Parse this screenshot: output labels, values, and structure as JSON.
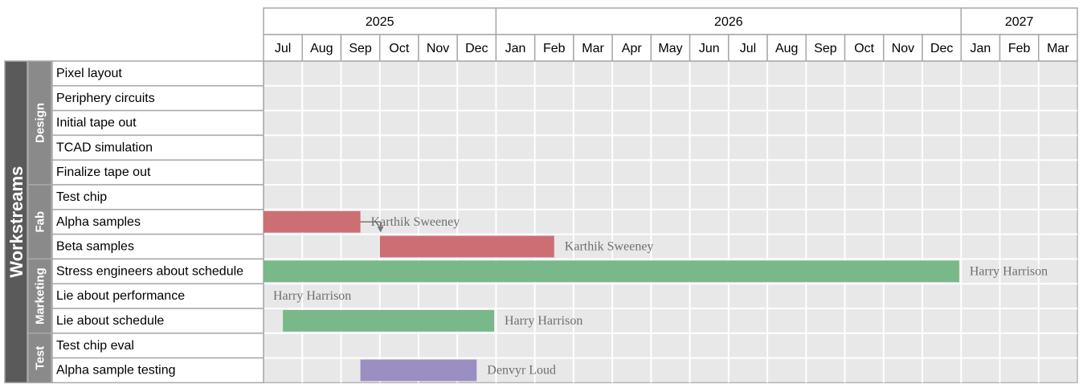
{
  "chart_data": {
    "type": "gantt",
    "title": "Workstreams",
    "years": [
      {
        "label": "2025",
        "start_month": 0,
        "months": 6
      },
      {
        "label": "2026",
        "start_month": 6,
        "months": 12
      },
      {
        "label": "2027",
        "start_month": 18,
        "months": 3
      }
    ],
    "months": [
      "Jul",
      "Aug",
      "Sep",
      "Oct",
      "Nov",
      "Dec",
      "Jan",
      "Feb",
      "Mar",
      "Apr",
      "May",
      "Jun",
      "Jul",
      "Aug",
      "Sep",
      "Oct",
      "Nov",
      "Dec",
      "Jan",
      "Feb",
      "Mar"
    ],
    "groups": [
      {
        "label": "Design",
        "first_task": 0,
        "count": 5
      },
      {
        "label": "Fab",
        "first_task": 5,
        "count": 3
      },
      {
        "label": "Marketing",
        "first_task": 8,
        "count": 3
      },
      {
        "label": "Test",
        "first_task": 11,
        "count": 2
      }
    ],
    "tasks": [
      {
        "name": "Pixel layout"
      },
      {
        "name": "Periphery circuits"
      },
      {
        "name": "Initial tape out"
      },
      {
        "name": "TCAD simulation"
      },
      {
        "name": "Finalize tape out"
      },
      {
        "name": "Test chip"
      },
      {
        "name": "Alpha samples",
        "start": 0,
        "end": 2.5,
        "owner": "Karthik Sweeney",
        "color": "#cd6e74"
      },
      {
        "name": "Beta samples",
        "start": 3,
        "end": 7.5,
        "owner": "Karthik Sweeney",
        "color": "#cd6e74"
      },
      {
        "name": "Stress engineers about schedule",
        "start": 0,
        "end": 17.95,
        "owner": "Harry Harrison",
        "color": "#79b888"
      },
      {
        "name": "Lie about performance",
        "owner": "Harry Harrison"
      },
      {
        "name": "Lie about schedule",
        "start": 0.5,
        "end": 5.95,
        "owner": "Harry Harrison",
        "color": "#79b888"
      },
      {
        "name": "Test chip eval"
      },
      {
        "name": "Alpha sample testing",
        "start": 2.5,
        "end": 5.5,
        "owner": "Denvyr Loud",
        "color": "#9b8ec0"
      }
    ],
    "dependencies": [
      {
        "from": 6,
        "to": 7
      }
    ],
    "colors": {
      "fab": "#cd6e74",
      "marketing": "#79b888",
      "test": "#9b8ec0",
      "grid_bg": "#e8e8e8",
      "outer_group": "#5a5a5a",
      "inner_group": "#8a8a8a"
    }
  }
}
